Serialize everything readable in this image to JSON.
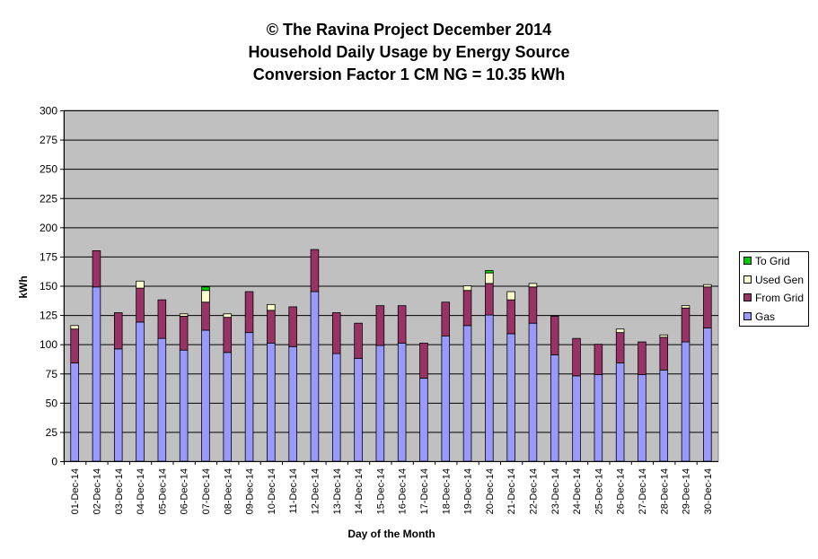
{
  "chart_data": {
    "type": "bar",
    "stacked": true,
    "title": [
      "© The Ravina Project December 2014",
      "Household Daily Usage by Energy Source",
      "Conversion Factor 1 CM NG = 10.35 kWh"
    ],
    "xlabel": "Day of the Month",
    "ylabel": "kWh",
    "ylim": [
      0,
      300
    ],
    "yticks": [
      0,
      25,
      50,
      75,
      100,
      125,
      150,
      175,
      200,
      225,
      250,
      275,
      300
    ],
    "grid": true,
    "legend_position": "right",
    "categories": [
      "01-Dec-14",
      "02-Dec-14",
      "03-Dec-14",
      "04-Dec-14",
      "05-Dec-14",
      "06-Dec-14",
      "07-Dec-14",
      "08-Dec-14",
      "09-Dec-14",
      "10-Dec-14",
      "11-Dec-14",
      "12-Dec-14",
      "13-Dec-14",
      "14-Dec-14",
      "15-Dec-14",
      "16-Dec-14",
      "17-Dec-14",
      "18-Dec-14",
      "19-Dec-14",
      "20-Dec-14",
      "21-Dec-14",
      "22-Dec-14",
      "23-Dec-14",
      "24-Dec-14",
      "25-Dec-14",
      "26-Dec-14",
      "27-Dec-14",
      "28-Dec-14",
      "29-Dec-14",
      "30-Dec-14"
    ],
    "series": [
      {
        "name": "Gas",
        "color": "#9999ff",
        "values": [
          84,
          149,
          96,
          119,
          105,
          95,
          112,
          93,
          110,
          101,
          98,
          145,
          92,
          88,
          99,
          101,
          71,
          107,
          116,
          125,
          109,
          118,
          91,
          73,
          74,
          84,
          74,
          78,
          102,
          114
        ]
      },
      {
        "name": "From Grid",
        "color": "#993366",
        "values": [
          29,
          31,
          31,
          29,
          33,
          29,
          24,
          30,
          35,
          28,
          34,
          36,
          35,
          30,
          34,
          32,
          30,
          29,
          30,
          27,
          29,
          31,
          33,
          32,
          26,
          26,
          28,
          28,
          29,
          35
        ]
      },
      {
        "name": "Used Gen",
        "color": "#ffffcc",
        "values": [
          3,
          0,
          0,
          6,
          0,
          2,
          10,
          3,
          0,
          5,
          0,
          0,
          0,
          0,
          0,
          0,
          0,
          0,
          4,
          9,
          7,
          3,
          0,
          0,
          0,
          3,
          0,
          2,
          2,
          2
        ]
      },
      {
        "name": "To Grid",
        "color": "#00cc00",
        "values": [
          0,
          0,
          0,
          0,
          0,
          0,
          3,
          0,
          0,
          0,
          0,
          0,
          0,
          0,
          0,
          0,
          0,
          0,
          0,
          2,
          0,
          0,
          0,
          0,
          0,
          0,
          0,
          0,
          0,
          0
        ]
      }
    ],
    "colors": {
      "plot_background": "#c0c0c0",
      "gridline": "#000000"
    }
  }
}
